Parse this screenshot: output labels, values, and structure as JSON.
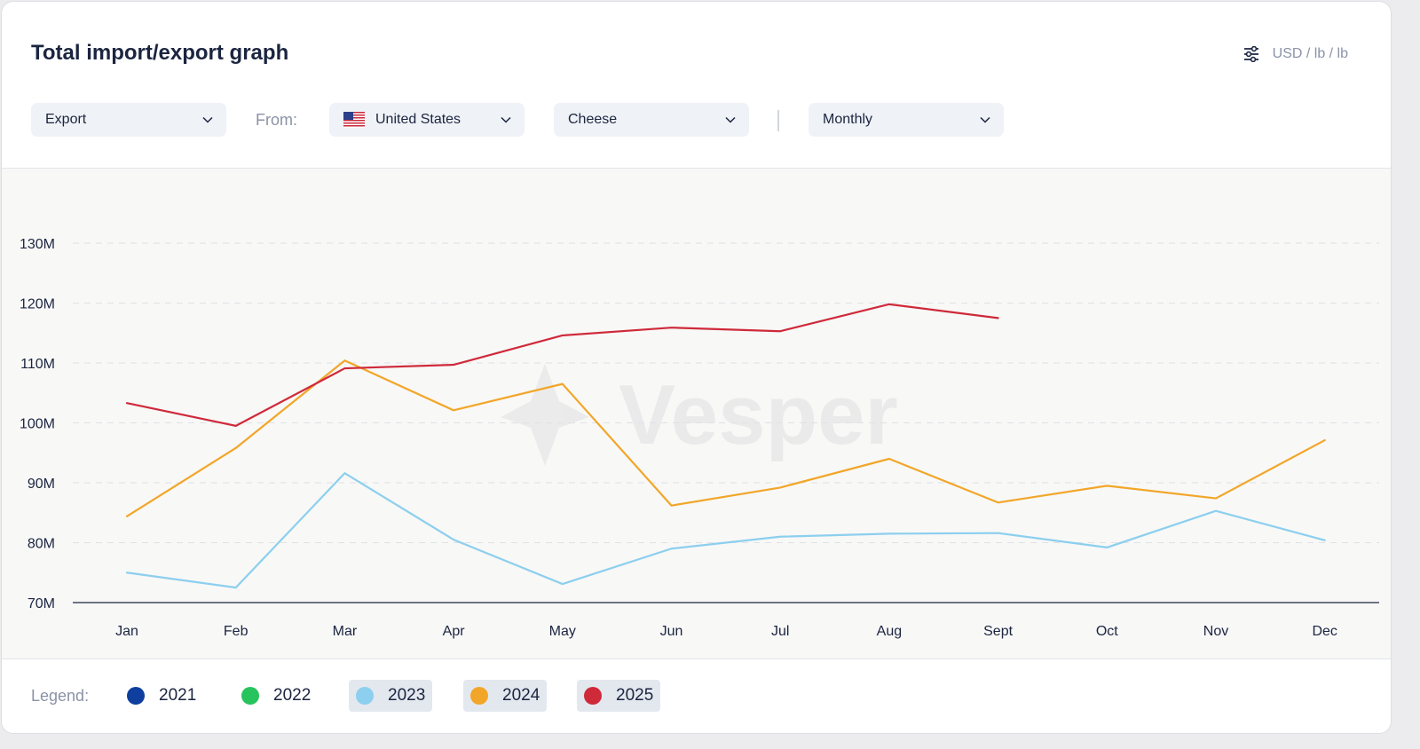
{
  "header": {
    "title": "Total import/export graph",
    "units_label": "USD / lb / lb",
    "units_icon": "sliders-icon"
  },
  "filters": {
    "direction": "Export",
    "from_label": "From:",
    "country": "United States",
    "country_icon": "us-flag-icon",
    "product": "Cheese",
    "period": "Monthly"
  },
  "watermark": "Vesper",
  "legend": {
    "label": "Legend:",
    "items": [
      {
        "year": "2021",
        "color": "#0e3f9e",
        "active": false
      },
      {
        "year": "2022",
        "color": "#27c35d",
        "active": false
      },
      {
        "year": "2023",
        "color": "#8ccfee",
        "active": true
      },
      {
        "year": "2024",
        "color": "#f2a629",
        "active": true
      },
      {
        "year": "2025",
        "color": "#cf2a3a",
        "active": true
      }
    ]
  },
  "chart_data": {
    "type": "line",
    "categories": [
      "Jan",
      "Feb",
      "Mar",
      "Apr",
      "May",
      "Jun",
      "Jul",
      "Aug",
      "Sept",
      "Oct",
      "Nov",
      "Dec"
    ],
    "ylim": [
      70000000,
      130000000
    ],
    "y_ticks": [
      70000000,
      80000000,
      90000000,
      100000000,
      110000000,
      120000000,
      130000000
    ],
    "y_tick_labels": [
      "70M",
      "80M",
      "90M",
      "100M",
      "110M",
      "120M",
      "130M"
    ],
    "grid": "horizontal dashed",
    "series": [
      {
        "name": "2023",
        "color": "#8ccfee",
        "values": [
          75000000,
          72500000,
          91600000,
          80500000,
          73100000,
          79000000,
          81000000,
          81500000,
          81600000,
          79200000,
          85300000,
          80400000
        ]
      },
      {
        "name": "2024",
        "color": "#f2a629",
        "values": [
          84400000,
          95800000,
          110400000,
          102100000,
          106500000,
          86200000,
          89200000,
          94000000,
          86700000,
          89500000,
          87400000,
          97100000
        ]
      },
      {
        "name": "2025",
        "color": "#cf2a3a",
        "values": [
          103300000,
          99500000,
          109100000,
          109700000,
          114600000,
          115900000,
          115300000,
          119800000,
          117500000,
          null,
          null,
          null
        ]
      }
    ]
  }
}
